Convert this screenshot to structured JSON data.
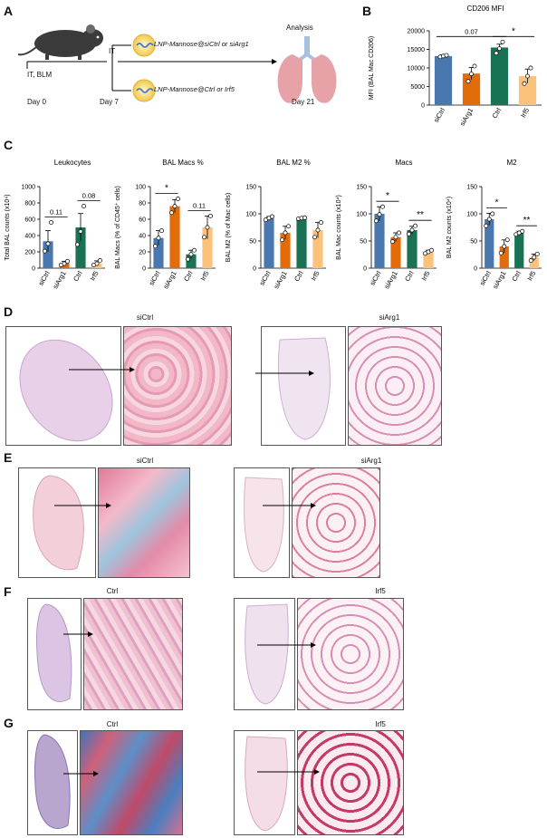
{
  "panels": {
    "A": "A",
    "B": "B",
    "C": "C",
    "D": "D",
    "E": "E",
    "F": "F",
    "G": "G"
  },
  "panelA": {
    "ibm": "IT, BLM",
    "it": "IT",
    "day0": "Day 0",
    "day7": "Day 7",
    "day21": "Day 21",
    "analysis": "Analysis",
    "lnp1": "LNP-Mannose@siCtrl or siArg1",
    "lnp2": "LNP-Mannose@Ctrl or Irf5"
  },
  "colors": {
    "siCtrl": "#4a77ad",
    "siArg1": "#e36c0a",
    "Ctrl": "#1a7254",
    "Irf5": "#fbc27b"
  },
  "chart_data": [
    {
      "type": "bar",
      "panel": "B",
      "title": "CD206 MFI",
      "ylabel": "MFI (BAL Mac CD206)",
      "categories": [
        "siCtrl",
        "siArg1",
        "Ctrl",
        "Irf5"
      ],
      "values": [
        13200,
        8500,
        15500,
        7800
      ],
      "errors": [
        300,
        1600,
        900,
        1900
      ],
      "points": [
        [
          13000,
          13200,
          13400
        ],
        [
          6400,
          8400,
          10500
        ],
        [
          14000,
          15200,
          17000
        ],
        [
          5800,
          7800,
          10000
        ]
      ],
      "ylim": [
        0,
        20000
      ],
      "yticks": [
        "0",
        "5000",
        "10000",
        "15000",
        "20000"
      ],
      "sig": [
        {
          "label": "0.07",
          "from": 0,
          "to": 2
        },
        {
          "label": "*",
          "from": 2,
          "to": 3
        }
      ]
    },
    {
      "type": "bar",
      "panel": "C",
      "title": "Leukocytes",
      "ylabel": "Total BAL counts (x10⁴)",
      "categories": [
        "siCtrl",
        "siArg1",
        "Ctrl",
        "Irf5"
      ],
      "values": [
        330,
        60,
        500,
        60
      ],
      "errors": [
        130,
        25,
        170,
        30
      ],
      "points": [
        [
          210,
          300,
          560
        ],
        [
          40,
          55,
          85
        ],
        [
          290,
          450,
          760
        ],
        [
          40,
          55,
          95
        ]
      ],
      "ylim": [
        0,
        1000
      ],
      "yticks": [
        "0",
        "200",
        "400",
        "600",
        "800",
        "1000"
      ],
      "sig": [
        {
          "label": "0.11",
          "from": 0,
          "to": 1
        },
        {
          "label": "0.08",
          "from": 2,
          "to": 3
        }
      ]
    },
    {
      "type": "bar",
      "panel": "C",
      "title": "BAL Macs %",
      "ylabel": "BAL Macs (% of CD45⁺ cells)",
      "categories": [
        "siCtrl",
        "siArg1",
        "Ctrl",
        "Irf5"
      ],
      "values": [
        37,
        76,
        17,
        50
      ],
      "errors": [
        9,
        8,
        5,
        14
      ],
      "points": [
        [
          27,
          37,
          46
        ],
        [
          68,
          76,
          85
        ],
        [
          11,
          17,
          22
        ],
        [
          38,
          50,
          64
        ]
      ],
      "ylim": [
        0,
        100
      ],
      "yticks": [
        "0",
        "20",
        "40",
        "60",
        "80",
        "100"
      ],
      "sig": [
        {
          "label": "*",
          "from": 0,
          "to": 1
        },
        {
          "label": "0.11",
          "from": 2,
          "to": 3
        }
      ]
    },
    {
      "type": "bar",
      "panel": "C",
      "title": "BAL M2 %",
      "ylabel": "BAL M2 (% of Mac cells)",
      "categories": [
        "siCtrl",
        "siArg1",
        "Ctrl",
        "Irf5"
      ],
      "values": [
        92,
        65,
        92,
        70
      ],
      "errors": [
        3,
        12,
        1,
        14
      ],
      "points": [
        [
          89,
          92,
          95
        ],
        [
          52,
          65,
          77
        ],
        [
          91,
          92,
          93
        ],
        [
          57,
          70,
          84
        ]
      ],
      "ylim": [
        0,
        150
      ],
      "yticks": [
        "0",
        "50",
        "100",
        "150"
      ],
      "sig": []
    },
    {
      "type": "bar",
      "panel": "C",
      "title": "Macs",
      "ylabel": "BAL Mac counts (x10⁴)",
      "categories": [
        "siCtrl",
        "siArg1",
        "Ctrl",
        "Irf5"
      ],
      "values": [
        100,
        57,
        70,
        30
      ],
      "errors": [
        13,
        8,
        7,
        3
      ],
      "points": [
        [
          87,
          99,
          113
        ],
        [
          49,
          57,
          65
        ],
        [
          63,
          70,
          78
        ],
        [
          27,
          30,
          33
        ]
      ],
      "ylim": [
        0,
        150
      ],
      "yticks": [
        "0",
        "50",
        "100",
        "150"
      ],
      "sig": [
        {
          "label": "*",
          "from": 0,
          "to": 1
        },
        {
          "label": "**",
          "from": 2,
          "to": 3
        }
      ]
    },
    {
      "type": "bar",
      "panel": "C",
      "title": "M2",
      "ylabel": "BAL M2 counts (x10⁴)",
      "categories": [
        "siCtrl",
        "siArg1",
        "Ctrl",
        "Irf5"
      ],
      "values": [
        90,
        40,
        65,
        20
      ],
      "errors": [
        11,
        12,
        3,
        6
      ],
      "points": [
        [
          78,
          90,
          100
        ],
        [
          28,
          40,
          52
        ],
        [
          62,
          65,
          68
        ],
        [
          14,
          20,
          26
        ]
      ],
      "ylim": [
        0,
        150
      ],
      "yticks": [
        "0",
        "50",
        "100",
        "150"
      ],
      "sig": [
        {
          "label": "*",
          "from": 0,
          "to": 1
        },
        {
          "label": "**",
          "from": 2,
          "to": 3
        }
      ]
    }
  ],
  "histology": {
    "D_left": "siCtrl",
    "D_right": "siArg1",
    "E_left": "siCtrl",
    "E_right": "siArg1",
    "F_left": "Ctrl",
    "F_right": "Irf5",
    "G_left": "Ctrl",
    "G_right": "Irf5"
  }
}
